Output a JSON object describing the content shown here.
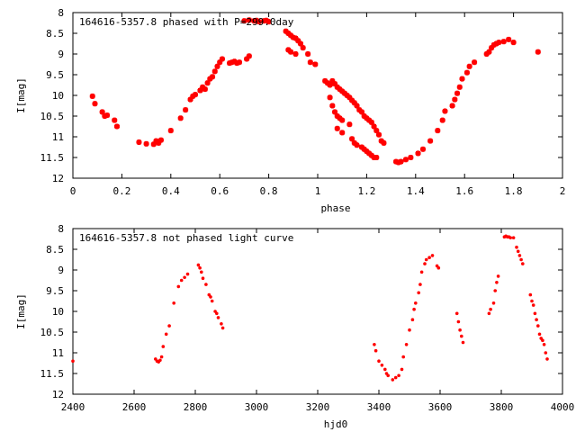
{
  "chart_data": [
    {
      "type": "scatter",
      "title": "164616-5357.8 phased with P=299.0day",
      "xlabel": "phase",
      "ylabel": "I[mag]",
      "xlim": [
        0,
        2
      ],
      "ylim": [
        8,
        12
      ],
      "y_inverted": true,
      "xticks": [
        "0",
        "0.2",
        "0.4",
        "0.6",
        "0.8",
        "1",
        "1.2",
        "1.4",
        "1.6",
        "1.8",
        "2"
      ],
      "yticks": [
        "8",
        "8.5",
        "9",
        "9.5",
        "10",
        "10.5",
        "11",
        "11.5",
        "12"
      ],
      "marker": "plus-bold",
      "color": "#ff0000",
      "points": [
        [
          0.08,
          10.02
        ],
        [
          0.09,
          10.2
        ],
        [
          0.12,
          10.4
        ],
        [
          0.13,
          10.5
        ],
        [
          0.14,
          10.48
        ],
        [
          0.17,
          10.6
        ],
        [
          0.18,
          10.75
        ],
        [
          0.27,
          11.13
        ],
        [
          0.3,
          11.17
        ],
        [
          0.33,
          11.18
        ],
        [
          0.34,
          11.1
        ],
        [
          0.35,
          11.15
        ],
        [
          0.36,
          11.08
        ],
        [
          0.4,
          10.85
        ],
        [
          0.44,
          10.55
        ],
        [
          0.46,
          10.35
        ],
        [
          0.48,
          10.1
        ],
        [
          0.49,
          10.02
        ],
        [
          0.5,
          9.98
        ],
        [
          0.52,
          9.88
        ],
        [
          0.53,
          9.8
        ],
        [
          0.54,
          9.85
        ],
        [
          0.55,
          9.7
        ],
        [
          0.56,
          9.6
        ],
        [
          0.57,
          9.55
        ],
        [
          0.58,
          9.42
        ],
        [
          0.59,
          9.3
        ],
        [
          0.6,
          9.2
        ],
        [
          0.61,
          9.12
        ],
        [
          0.64,
          9.22
        ],
        [
          0.65,
          9.2
        ],
        [
          0.66,
          9.18
        ],
        [
          0.67,
          9.22
        ],
        [
          0.68,
          9.2
        ],
        [
          0.71,
          9.12
        ],
        [
          0.72,
          9.05
        ],
        [
          0.7,
          8.2
        ],
        [
          0.72,
          8.18
        ],
        [
          0.74,
          8.2
        ],
        [
          0.75,
          8.19
        ],
        [
          0.76,
          8.22
        ],
        [
          0.78,
          8.2
        ],
        [
          0.8,
          8.22
        ],
        [
          0.79,
          8.19
        ],
        [
          0.87,
          8.45
        ],
        [
          0.88,
          8.5
        ],
        [
          0.89,
          8.55
        ],
        [
          0.9,
          8.6
        ],
        [
          0.91,
          8.62
        ],
        [
          0.92,
          8.68
        ],
        [
          0.93,
          8.75
        ],
        [
          0.94,
          8.85
        ],
        [
          0.88,
          8.9
        ],
        [
          0.89,
          8.95
        ],
        [
          0.91,
          9.0
        ],
        [
          0.96,
          9.0
        ],
        [
          0.97,
          9.2
        ],
        [
          0.99,
          9.25
        ],
        [
          1.03,
          9.65
        ],
        [
          1.04,
          9.7
        ],
        [
          1.05,
          9.75
        ],
        [
          1.06,
          9.65
        ],
        [
          1.07,
          9.72
        ],
        [
          1.08,
          9.8
        ],
        [
          1.09,
          9.85
        ],
        [
          1.1,
          9.9
        ],
        [
          1.11,
          9.95
        ],
        [
          1.12,
          10.0
        ],
        [
          1.13,
          10.05
        ],
        [
          1.14,
          10.12
        ],
        [
          1.15,
          10.18
        ],
        [
          1.16,
          10.25
        ],
        [
          1.17,
          10.35
        ],
        [
          1.18,
          10.4
        ],
        [
          1.19,
          10.5
        ],
        [
          1.2,
          10.55
        ],
        [
          1.21,
          10.6
        ],
        [
          1.22,
          10.65
        ],
        [
          1.23,
          10.75
        ],
        [
          1.24,
          10.85
        ],
        [
          1.25,
          10.95
        ],
        [
          1.26,
          11.1
        ],
        [
          1.27,
          11.15
        ],
        [
          1.05,
          10.05
        ],
        [
          1.06,
          10.25
        ],
        [
          1.07,
          10.4
        ],
        [
          1.08,
          10.5
        ],
        [
          1.09,
          10.55
        ],
        [
          1.1,
          10.6
        ],
        [
          1.13,
          10.7
        ],
        [
          1.08,
          10.8
        ],
        [
          1.1,
          10.9
        ],
        [
          1.14,
          11.05
        ],
        [
          1.15,
          11.15
        ],
        [
          1.16,
          11.2
        ],
        [
          1.18,
          11.25
        ],
        [
          1.19,
          11.3
        ],
        [
          1.2,
          11.35
        ],
        [
          1.21,
          11.4
        ],
        [
          1.22,
          11.45
        ],
        [
          1.23,
          11.5
        ],
        [
          1.24,
          11.5
        ],
        [
          1.32,
          11.6
        ],
        [
          1.33,
          11.62
        ],
        [
          1.34,
          11.6
        ],
        [
          1.36,
          11.55
        ],
        [
          1.38,
          11.5
        ],
        [
          1.41,
          11.4
        ],
        [
          1.43,
          11.3
        ],
        [
          1.46,
          11.1
        ],
        [
          1.49,
          10.85
        ],
        [
          1.51,
          10.6
        ],
        [
          1.52,
          10.38
        ],
        [
          1.55,
          10.25
        ],
        [
          1.56,
          10.1
        ],
        [
          1.57,
          9.95
        ],
        [
          1.58,
          9.8
        ],
        [
          1.59,
          9.6
        ],
        [
          1.61,
          9.45
        ],
        [
          1.62,
          9.3
        ],
        [
          1.64,
          9.2
        ],
        [
          1.69,
          9.0
        ],
        [
          1.7,
          8.95
        ],
        [
          1.71,
          8.85
        ],
        [
          1.72,
          8.78
        ],
        [
          1.73,
          8.75
        ],
        [
          1.74,
          8.72
        ],
        [
          1.76,
          8.7
        ],
        [
          1.78,
          8.65
        ],
        [
          1.8,
          8.72
        ],
        [
          1.9,
          8.95
        ]
      ]
    },
    {
      "type": "scatter",
      "title": "164616-5357.8 not phased light curve",
      "xlabel": "hjd0",
      "ylabel": "I[mag]",
      "xlim": [
        2400,
        4000
      ],
      "ylim": [
        8,
        12
      ],
      "y_inverted": true,
      "xticks": [
        "2400",
        "2600",
        "2800",
        "3000",
        "3200",
        "3400",
        "3600",
        "3800",
        "4000"
      ],
      "yticks": [
        "8",
        "8.5",
        "9",
        "9.5",
        "10",
        "10.5",
        "11",
        "11.5",
        "12"
      ],
      "marker": "dot",
      "color": "#ff0000",
      "points": [
        [
          2400,
          11.2
        ],
        [
          2670,
          11.15
        ],
        [
          2675,
          11.2
        ],
        [
          2680,
          11.22
        ],
        [
          2685,
          11.18
        ],
        [
          2690,
          11.1
        ],
        [
          2695,
          10.85
        ],
        [
          2705,
          10.55
        ],
        [
          2715,
          10.35
        ],
        [
          2730,
          9.8
        ],
        [
          2745,
          9.4
        ],
        [
          2755,
          9.25
        ],
        [
          2765,
          9.18
        ],
        [
          2775,
          9.1
        ],
        [
          2810,
          8.88
        ],
        [
          2815,
          8.95
        ],
        [
          2820,
          9.05
        ],
        [
          2825,
          9.2
        ],
        [
          2835,
          9.35
        ],
        [
          2845,
          9.6
        ],
        [
          2850,
          9.65
        ],
        [
          2855,
          9.75
        ],
        [
          2865,
          10.0
        ],
        [
          2870,
          10.05
        ],
        [
          2875,
          10.15
        ],
        [
          2885,
          10.3
        ],
        [
          2890,
          10.4
        ],
        [
          3385,
          10.8
        ],
        [
          3390,
          10.95
        ],
        [
          3400,
          11.2
        ],
        [
          3410,
          11.3
        ],
        [
          3420,
          11.4
        ],
        [
          3425,
          11.5
        ],
        [
          3430,
          11.55
        ],
        [
          3445,
          11.65
        ],
        [
          3455,
          11.6
        ],
        [
          3465,
          11.55
        ],
        [
          3475,
          11.4
        ],
        [
          3480,
          11.1
        ],
        [
          3490,
          10.8
        ],
        [
          3500,
          10.45
        ],
        [
          3510,
          10.2
        ],
        [
          3515,
          9.95
        ],
        [
          3520,
          9.8
        ],
        [
          3530,
          9.55
        ],
        [
          3535,
          9.35
        ],
        [
          3540,
          9.05
        ],
        [
          3550,
          8.85
        ],
        [
          3555,
          8.75
        ],
        [
          3565,
          8.7
        ],
        [
          3575,
          8.65
        ],
        [
          3590,
          8.9
        ],
        [
          3595,
          8.95
        ],
        [
          3655,
          10.05
        ],
        [
          3660,
          10.25
        ],
        [
          3665,
          10.45
        ],
        [
          3670,
          10.6
        ],
        [
          3675,
          10.75
        ],
        [
          3760,
          10.05
        ],
        [
          3765,
          9.95
        ],
        [
          3775,
          9.8
        ],
        [
          3780,
          9.5
        ],
        [
          3785,
          9.3
        ],
        [
          3790,
          9.15
        ],
        [
          3810,
          8.2
        ],
        [
          3815,
          8.18
        ],
        [
          3820,
          8.2
        ],
        [
          3825,
          8.2
        ],
        [
          3830,
          8.22
        ],
        [
          3840,
          8.22
        ],
        [
          3850,
          8.45
        ],
        [
          3855,
          8.55
        ],
        [
          3860,
          8.65
        ],
        [
          3865,
          8.75
        ],
        [
          3870,
          8.85
        ],
        [
          3895,
          9.6
        ],
        [
          3900,
          9.75
        ],
        [
          3905,
          9.85
        ],
        [
          3910,
          10.05
        ],
        [
          3915,
          10.2
        ],
        [
          3920,
          10.35
        ],
        [
          3925,
          10.55
        ],
        [
          3930,
          10.65
        ],
        [
          3935,
          10.7
        ],
        [
          3940,
          10.8
        ],
        [
          3945,
          11.0
        ],
        [
          3950,
          11.15
        ]
      ]
    }
  ]
}
